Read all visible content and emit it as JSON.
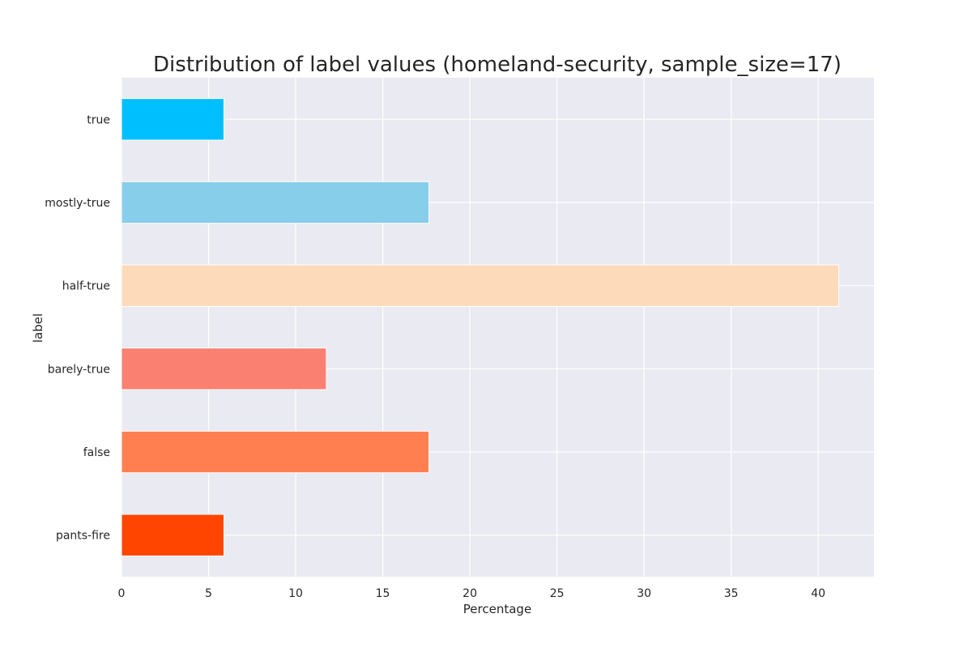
{
  "chart_data": {
    "type": "bar",
    "orientation": "horizontal",
    "title": "Distribution of label values (homeland-security, sample_size=17)",
    "xlabel": "Percentage",
    "ylabel": "label",
    "categories": [
      "true",
      "mostly-true",
      "half-true",
      "barely-true",
      "false",
      "pants-fire"
    ],
    "values": [
      5.88,
      17.65,
      41.18,
      11.76,
      17.65,
      5.88
    ],
    "colors": [
      "#00bfff",
      "#87ceeb",
      "#fddab9",
      "#fa8072",
      "#ff7f50",
      "#ff4500"
    ],
    "xlim": [
      0,
      43.2
    ],
    "xticks": [
      0,
      5,
      10,
      15,
      20,
      25,
      30,
      35,
      40
    ],
    "grid": true,
    "legend": "none",
    "background": "#eaeaf2",
    "grid_color": "#ffffff"
  }
}
